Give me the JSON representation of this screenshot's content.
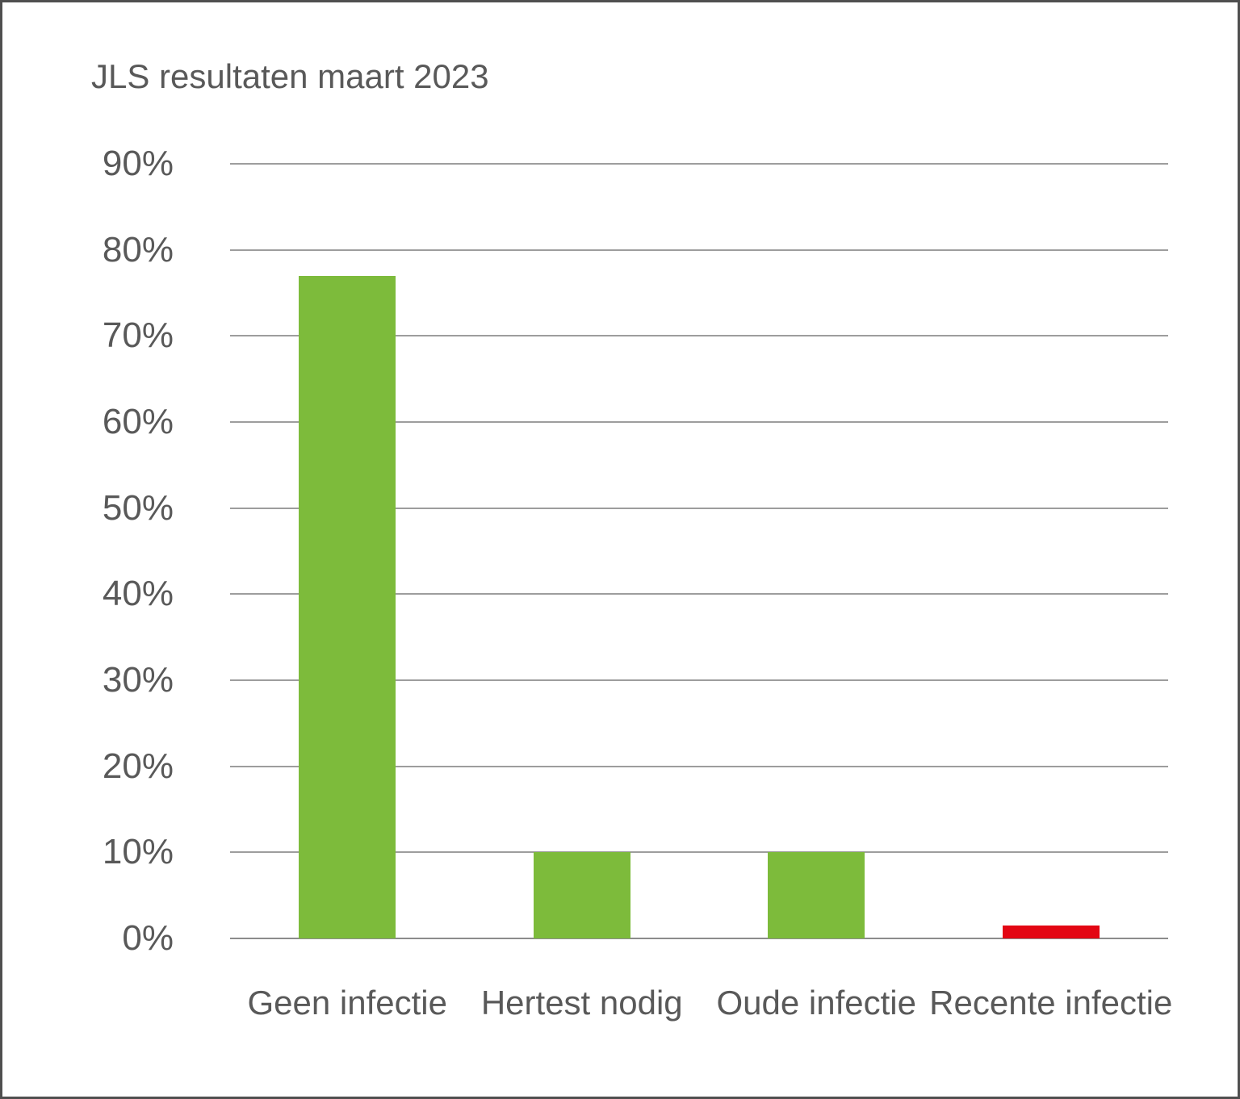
{
  "window": {
    "background": "#ffffff",
    "border_color": "#4f4f4f"
  },
  "chart_data": {
    "type": "bar",
    "title": "JLS resultaten maart 2023",
    "categories": [
      "Geen infectie",
      "Hertest nodig",
      "Oude infectie",
      "Recente infectie"
    ],
    "values": [
      77,
      10,
      10,
      1.5
    ],
    "bar_colors": [
      "#7dbb3b",
      "#7dbb3b",
      "#7dbb3b",
      "#e30613"
    ],
    "xlabel": "",
    "ylabel": "",
    "ylim": [
      0,
      90
    ],
    "ytick_step": 10,
    "ytick_labels": [
      "0%",
      "10%",
      "20%",
      "30%",
      "40%",
      "50%",
      "60%",
      "70%",
      "80%",
      "90%"
    ],
    "grid": "horizontal",
    "gridline_color": "#9d9d9d",
    "axis_line_color": "#8c8c8c",
    "text_color": "#595959",
    "legend_position": "none"
  }
}
